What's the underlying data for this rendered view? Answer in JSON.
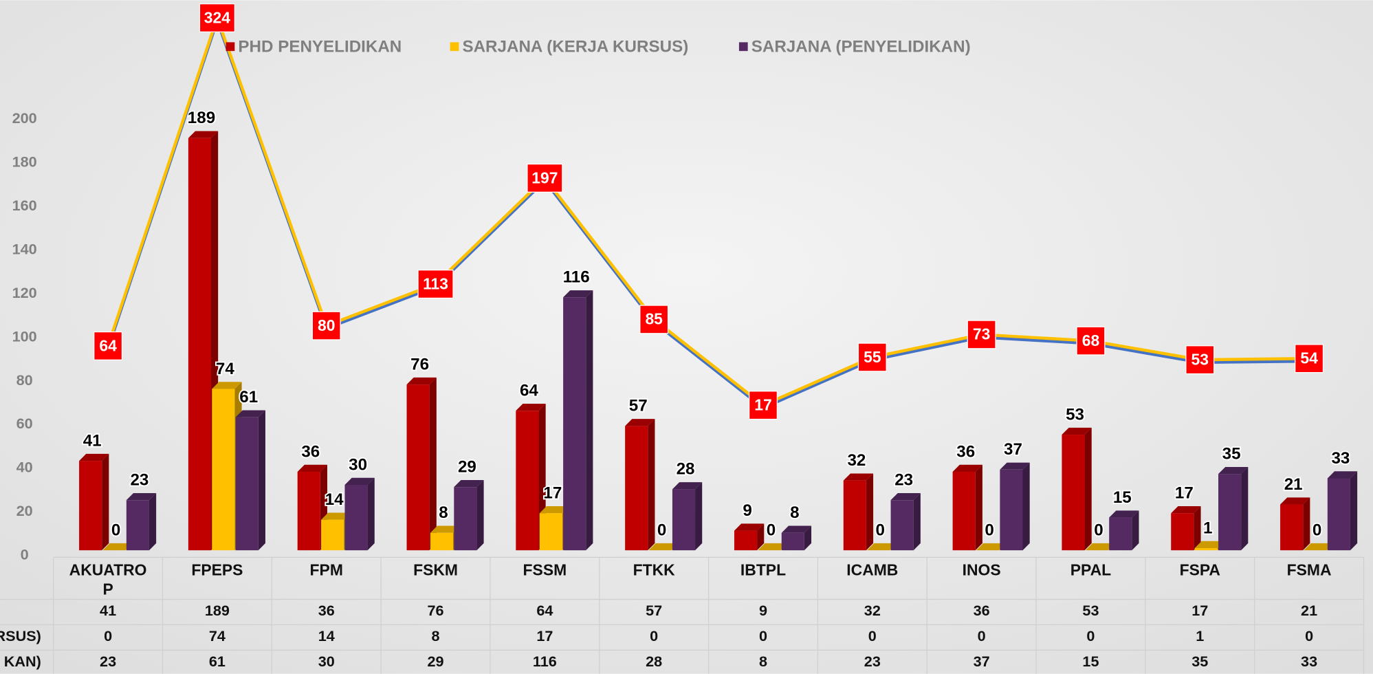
{
  "chart_data": {
    "type": "bar",
    "categories": [
      "AKUATROP",
      "FPEPS",
      "FPM",
      "FSKM",
      "FSSM",
      "FTKK",
      "IBTPL",
      "ICAMB",
      "INOS",
      "PPAL",
      "FSPA",
      "FSMA"
    ],
    "series": [
      {
        "name": "PHD PENYELIDIKAN",
        "color": "#c00000",
        "values": [
          41,
          189,
          36,
          76,
          64,
          57,
          9,
          32,
          36,
          53,
          17,
          21
        ]
      },
      {
        "name": "SARJANA (KERJA KURSUS)",
        "color": "#ffc000",
        "values": [
          0,
          74,
          14,
          8,
          17,
          0,
          0,
          0,
          0,
          0,
          1,
          0
        ]
      },
      {
        "name": "SARJANA (PENYELIDIKAN)",
        "color": "#552a63",
        "values": [
          23,
          61,
          30,
          29,
          116,
          28,
          8,
          23,
          37,
          15,
          35,
          33
        ]
      }
    ],
    "totals": {
      "values": [
        64,
        324,
        80,
        113,
        197,
        85,
        17,
        55,
        73,
        68,
        53,
        54
      ],
      "axis": "y2",
      "color": "#ffc000",
      "shadow_color": "#4472c4",
      "label_box_color": "#ff0000"
    },
    "ylim": [
      0,
      200
    ],
    "yticks": [
      0,
      20,
      40,
      60,
      80,
      100,
      120,
      140,
      160,
      180,
      200
    ],
    "y2lim": [
      -98,
      338
    ],
    "table_row_labels": [
      null,
      "RSUS)",
      "KAN)"
    ],
    "legend": "top"
  }
}
